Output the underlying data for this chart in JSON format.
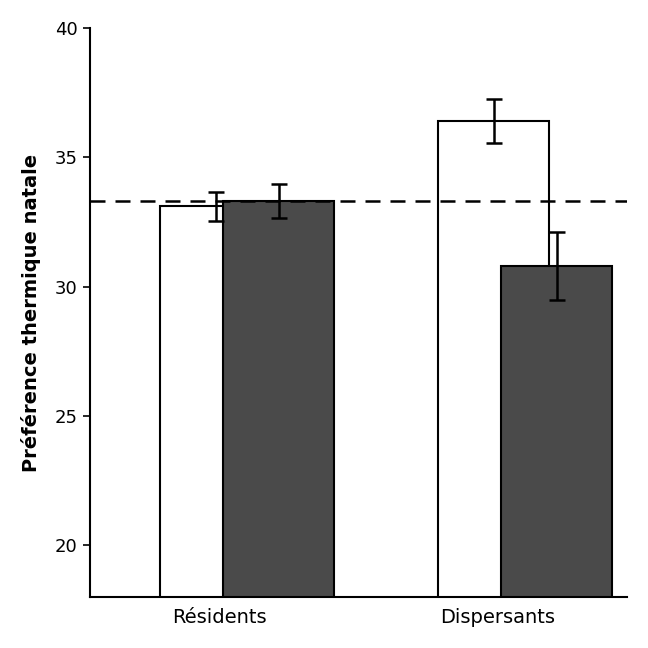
{
  "groups": [
    "Résidents",
    "Dispersants"
  ],
  "bar_values_white": [
    33.1,
    36.4
  ],
  "bar_values_dark": [
    33.3,
    30.8
  ],
  "bar_errors_white": [
    0.55,
    0.85
  ],
  "bar_errors_dark": [
    0.65,
    1.3
  ],
  "bar_color_white": "#ffffff",
  "bar_color_dark": "#4a4a4a",
  "bar_edgecolor": "#000000",
  "dashed_line_y": 33.3,
  "ylabel": "Préférence thermique natale",
  "ylim": [
    18,
    40
  ],
  "yticks": [
    20,
    25,
    30,
    35,
    40
  ],
  "bar_width": 0.6,
  "group_centers": [
    1.0,
    2.5
  ],
  "linewidth": 1.5,
  "capsize": 6,
  "error_linewidth": 1.8,
  "xlabel_fontsize": 14,
  "ylabel_fontsize": 14,
  "tick_fontsize": 13
}
